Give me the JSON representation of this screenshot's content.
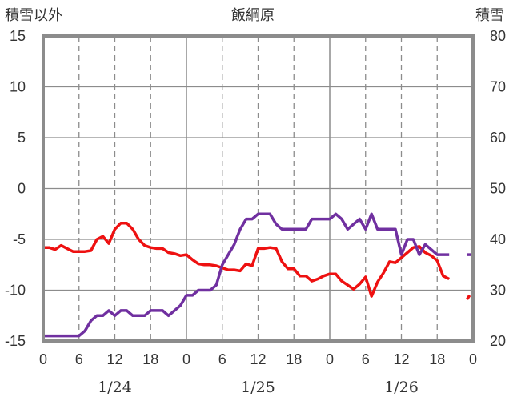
{
  "chart_data": {
    "type": "line",
    "title": "飯綱原",
    "left_axis_label": "積雪以外",
    "right_axis_label": "積雪",
    "y_left": {
      "range": [
        -15,
        15
      ],
      "ticks": [
        15,
        10,
        5,
        0,
        -5,
        -10,
        -15
      ]
    },
    "y_right": {
      "range": [
        20,
        80
      ],
      "ticks": [
        80,
        70,
        60,
        50,
        40,
        30,
        20
      ]
    },
    "x": {
      "unit": "hours from 1/24 00:00",
      "range": [
        0,
        72
      ],
      "tick_positions": [
        0,
        6,
        12,
        18,
        24,
        30,
        36,
        42,
        48,
        54,
        60,
        66,
        72
      ],
      "tick_labels": [
        "0",
        "6",
        "12",
        "18",
        "0",
        "6",
        "12",
        "18",
        "0",
        "6",
        "12",
        "18",
        "0"
      ],
      "dates": [
        {
          "label": "1/24",
          "at": 12
        },
        {
          "label": "1/25",
          "at": 36
        },
        {
          "label": "1/26",
          "at": 60
        }
      ]
    },
    "grid": true,
    "series": [
      {
        "axis": "left",
        "color": "#ee1111",
        "x": [
          0,
          1,
          2,
          3,
          4,
          5,
          6,
          7,
          8,
          9,
          10,
          11,
          12,
          13,
          14,
          15,
          16,
          17,
          18,
          19,
          20,
          21,
          22,
          23,
          24,
          25,
          26,
          27,
          28,
          29,
          30,
          31,
          32,
          33,
          34,
          35,
          36,
          37,
          38,
          39,
          40,
          41,
          42,
          43,
          44,
          45,
          46,
          47,
          48,
          49,
          50,
          51,
          52,
          53,
          54,
          55,
          56,
          57,
          58,
          59,
          60,
          61,
          62,
          63,
          64,
          65,
          66,
          67,
          68
        ],
        "values": [
          -5.8,
          -5.8,
          -6.0,
          -5.6,
          -5.9,
          -6.2,
          -6.2,
          -6.2,
          -6.1,
          -5.0,
          -4.7,
          -5.4,
          -4.0,
          -3.4,
          -3.4,
          -4.0,
          -5.0,
          -5.6,
          -5.8,
          -5.9,
          -5.9,
          -6.3,
          -6.4,
          -6.6,
          -6.5,
          -7.0,
          -7.4,
          -7.5,
          -7.5,
          -7.6,
          -7.8,
          -8.0,
          -8.0,
          -8.1,
          -7.4,
          -7.6,
          -5.9,
          -5.9,
          -5.8,
          -5.9,
          -7.2,
          -7.9,
          -7.9,
          -8.6,
          -8.6,
          -9.1,
          -8.9,
          -8.6,
          -8.4,
          -8.4,
          -9.1,
          -9.5,
          -9.9,
          -9.4,
          -8.7,
          -10.6,
          -9.2,
          -8.3,
          -7.2,
          -7.3,
          -6.8,
          -6.3,
          -5.8,
          -5.7,
          -6.3,
          -6.6,
          -7.1,
          -8.6,
          -8.9
        ]
      },
      {
        "axis": "left",
        "color": "#ee1111",
        "dashed": true,
        "x": [
          71,
          72
        ],
        "values": [
          -10.9,
          -10.0
        ]
      },
      {
        "axis": "right",
        "color": "#7030a0",
        "x": [
          0,
          1,
          2,
          3,
          4,
          5,
          6,
          7,
          8,
          9,
          10,
          11,
          12,
          13,
          14,
          15,
          16,
          17,
          18,
          19,
          20,
          21,
          22,
          23,
          24,
          25,
          26,
          27,
          28,
          29,
          30,
          31,
          32,
          33,
          34,
          35,
          36,
          37,
          38,
          39,
          40,
          41,
          42,
          43,
          44,
          45,
          46,
          47,
          48,
          49,
          50,
          51,
          52,
          53,
          54,
          55,
          56,
          57,
          58,
          59,
          60,
          61,
          62,
          63,
          64,
          65,
          66,
          67,
          68
        ],
        "values": [
          21,
          21,
          21,
          21,
          21,
          21,
          21,
          22,
          24,
          25,
          25,
          26,
          25,
          26,
          26,
          25,
          25,
          25,
          26,
          26,
          26,
          25,
          26,
          27,
          29,
          29,
          30,
          30,
          30,
          31,
          35,
          37,
          39,
          42,
          44,
          44,
          45,
          45,
          45,
          43,
          42,
          42,
          42,
          42,
          42,
          44,
          44,
          44,
          44,
          45,
          44,
          42,
          43,
          44,
          42,
          45,
          42,
          42,
          42,
          42,
          37,
          40,
          40,
          37,
          39,
          38,
          37,
          37,
          37
        ]
      },
      {
        "axis": "right",
        "color": "#7030a0",
        "dashed": true,
        "x": [
          71,
          72
        ],
        "values": [
          37,
          37
        ]
      }
    ]
  }
}
